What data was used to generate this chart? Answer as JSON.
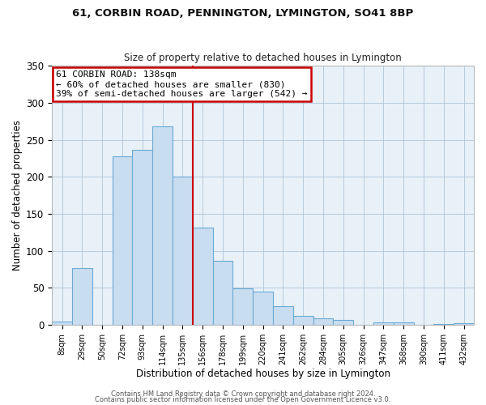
{
  "title1": "61, CORBIN ROAD, PENNINGTON, LYMINGTON, SO41 8BP",
  "title2": "Size of property relative to detached houses in Lymington",
  "xlabel": "Distribution of detached houses by size in Lymington",
  "ylabel": "Number of detached properties",
  "bar_labels": [
    "8sqm",
    "29sqm",
    "50sqm",
    "72sqm",
    "93sqm",
    "114sqm",
    "135sqm",
    "156sqm",
    "178sqm",
    "199sqm",
    "220sqm",
    "241sqm",
    "262sqm",
    "284sqm",
    "305sqm",
    "326sqm",
    "347sqm",
    "368sqm",
    "390sqm",
    "411sqm",
    "432sqm"
  ],
  "bar_heights": [
    5,
    77,
    0,
    228,
    236,
    268,
    200,
    131,
    87,
    49,
    45,
    25,
    12,
    9,
    7,
    0,
    4,
    3,
    0,
    1,
    2
  ],
  "bar_color": "#c9ddf0",
  "bar_edge_color": "#6aaad4",
  "vline_x": 6.5,
  "vline_color": "#cc0000",
  "annotation_title": "61 CORBIN ROAD: 138sqm",
  "annotation_line1": "← 60% of detached houses are smaller (830)",
  "annotation_line2": "39% of semi-detached houses are larger (542) →",
  "annotation_box_color": "#ffffff",
  "annotation_box_edge_color": "#cc0000",
  "ylim": [
    0,
    350
  ],
  "yticks": [
    0,
    50,
    100,
    150,
    200,
    250,
    300,
    350
  ],
  "footer1": "Contains HM Land Registry data © Crown copyright and database right 2024.",
  "footer2": "Contains public sector information licensed under the Open Government Licence v3.0.",
  "bg_color": "#e8f0f8"
}
